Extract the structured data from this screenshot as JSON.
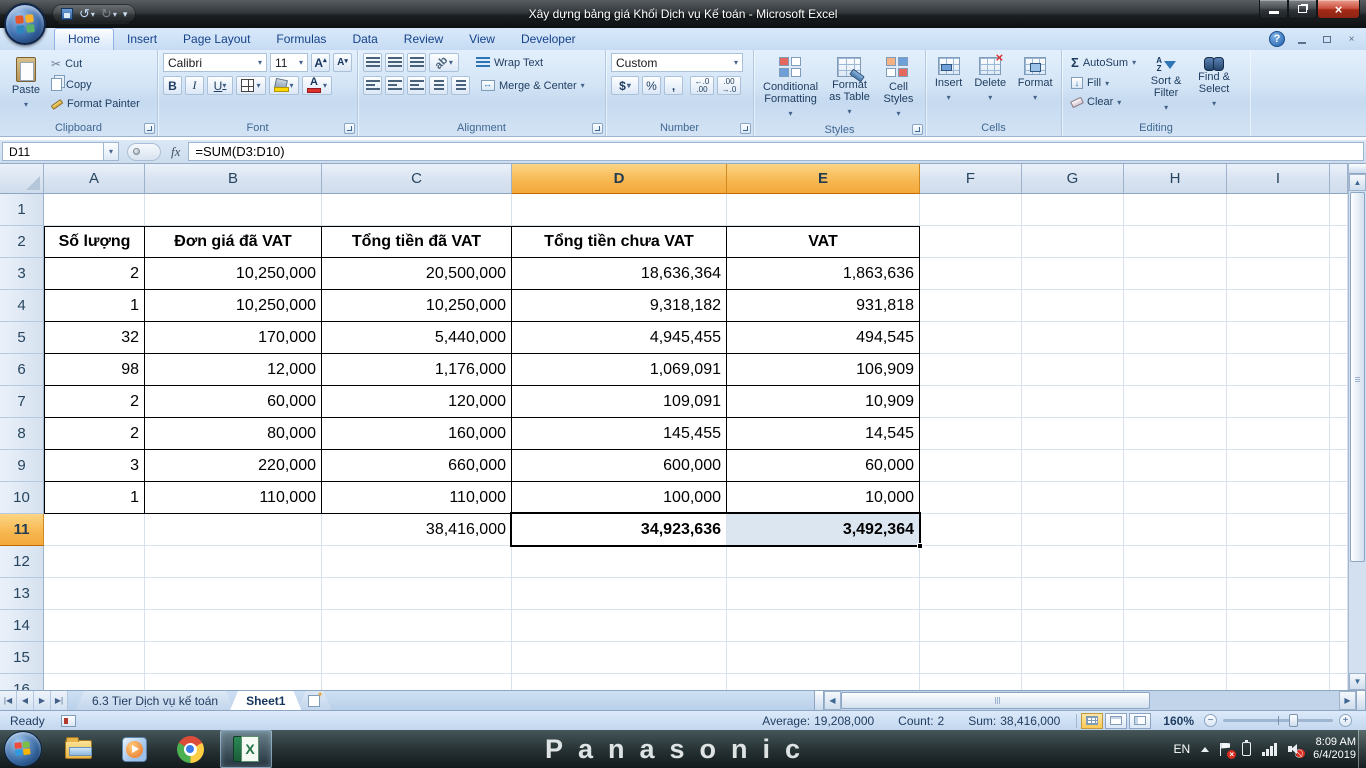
{
  "window": {
    "title": "Xây dựng bảng giá Khối Dịch vụ Kế toán - Microsoft Excel"
  },
  "ribbon": {
    "tabs": [
      {
        "label": "Home"
      },
      {
        "label": "Insert"
      },
      {
        "label": "Page Layout"
      },
      {
        "label": "Formulas"
      },
      {
        "label": "Data"
      },
      {
        "label": "Review"
      },
      {
        "label": "View"
      },
      {
        "label": "Developer"
      }
    ],
    "active_tab": "Home",
    "clipboard": {
      "label": "Clipboard",
      "paste": "Paste",
      "cut": "Cut",
      "copy": "Copy",
      "format_painter": "Format Painter"
    },
    "font": {
      "label": "Font",
      "name": "Calibri",
      "size": "11",
      "bold": "B",
      "italic": "I",
      "underline": "U"
    },
    "alignment": {
      "label": "Alignment",
      "wrap": "Wrap Text",
      "merge": "Merge & Center"
    },
    "number": {
      "label": "Number",
      "format": "Custom",
      "currency": "$",
      "percent": "%",
      "comma": ","
    },
    "styles": {
      "label": "Styles",
      "conditional": "Conditional Formatting",
      "as_table": "Format as Table",
      "cell_styles": "Cell Styles"
    },
    "cells": {
      "label": "Cells",
      "insert": "Insert",
      "del": "Delete",
      "format": "Format"
    },
    "editing": {
      "label": "Editing",
      "autosum": "AutoSum",
      "fill": "Fill",
      "clear": "Clear",
      "sort": "Sort & Filter",
      "find": "Find & Select"
    }
  },
  "formula_bar": {
    "name_box": "D11",
    "formula": "=SUM(D3:D10)"
  },
  "sheet": {
    "col_headers": [
      "A",
      "B",
      "C",
      "D",
      "E",
      "F",
      "G",
      "H",
      "I"
    ],
    "selection": {
      "active_cell": "D11",
      "selected_cols": [
        "D",
        "E"
      ],
      "selected_row": 11
    },
    "table": {
      "headers": [
        "Số lượng",
        "Đơn giá đã VAT",
        "Tổng tiền đã VAT",
        "Tổng tiền chưa VAT",
        "VAT"
      ],
      "data_rows": [
        [
          "2",
          "10,250,000",
          "20,500,000",
          "18,636,364",
          "1,863,636"
        ],
        [
          "1",
          "10,250,000",
          "10,250,000",
          "9,318,182",
          "931,818"
        ],
        [
          "32",
          "170,000",
          "5,440,000",
          "4,945,455",
          "494,545"
        ],
        [
          "98",
          "12,000",
          "1,176,000",
          "1,069,091",
          "106,909"
        ],
        [
          "2",
          "60,000",
          "120,000",
          "109,091",
          "10,909"
        ],
        [
          "2",
          "80,000",
          "160,000",
          "145,455",
          "14,545"
        ],
        [
          "3",
          "220,000",
          "660,000",
          "600,000",
          "60,000"
        ],
        [
          "1",
          "110,000",
          "110,000",
          "100,000",
          "10,000"
        ]
      ],
      "totals_row": [
        "",
        "",
        "38,416,000",
        "34,923,636",
        "3,492,364"
      ]
    }
  },
  "sheet_tabs": {
    "tabs": [
      "6.3 Tier Dịch vụ kế toán",
      "Sheet1"
    ],
    "active": "Sheet1"
  },
  "status_bar": {
    "mode": "Ready",
    "average_label": "Average:",
    "average_value": "19,208,000",
    "count_label": "Count:",
    "count_value": "2",
    "sum_label": "Sum:",
    "sum_value": "38,416,000",
    "zoom_level": "160%"
  },
  "taskbar": {
    "language": "EN",
    "time": "8:09 AM",
    "date": "6/4/2019",
    "wallpaper_text": "Panasonic"
  }
}
